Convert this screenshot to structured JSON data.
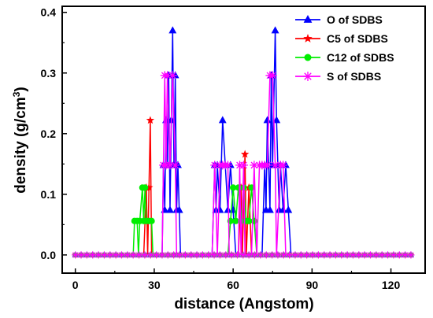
{
  "chart_data": {
    "type": "line",
    "xlabel": "distance (Angstom)",
    "ylabel_main": "density (g/cm",
    "ylabel_sup": "3",
    "ylabel_close": ")",
    "xlim": [
      -5,
      133
    ],
    "ylim": [
      -0.03,
      0.41
    ],
    "xticks": [
      0,
      30,
      60,
      90,
      120
    ],
    "yticks": [
      0.0,
      0.1,
      0.2,
      0.3,
      0.4
    ],
    "ytick_labels": [
      "0.0",
      "0.1",
      "0.2",
      "0.3",
      "0.4"
    ],
    "grid": false,
    "legend_position": "top-right",
    "series": [
      {
        "name": "O of SDBS",
        "color": "#0000ff",
        "marker": "triangle",
        "points": [
          [
            0,
            0
          ],
          [
            33,
            0
          ],
          [
            33.5,
            0.148
          ],
          [
            34,
            0.074
          ],
          [
            34.5,
            0.222
          ],
          [
            35,
            0.148
          ],
          [
            35.5,
            0.296
          ],
          [
            36,
            0.074
          ],
          [
            36.5,
            0.222
          ],
          [
            37,
            0.37
          ],
          [
            37.5,
            0.148
          ],
          [
            38,
            0.296
          ],
          [
            38.5,
            0.074
          ],
          [
            39,
            0.148
          ],
          [
            39.5,
            0.074
          ],
          [
            40,
            0
          ],
          [
            52,
            0
          ],
          [
            53,
            0.148
          ],
          [
            53.5,
            0.074
          ],
          [
            54,
            0.148
          ],
          [
            55,
            0.074
          ],
          [
            56,
            0.222
          ],
          [
            57,
            0.148
          ],
          [
            58,
            0.074
          ],
          [
            59,
            0.148
          ],
          [
            60,
            0.074
          ],
          [
            61,
            0
          ],
          [
            71,
            0
          ],
          [
            72,
            0.148
          ],
          [
            72.5,
            0.074
          ],
          [
            73,
            0.222
          ],
          [
            74,
            0.074
          ],
          [
            74.5,
            0.296
          ],
          [
            75,
            0.148
          ],
          [
            76,
            0.37
          ],
          [
            76.5,
            0.222
          ],
          [
            77,
            0.148
          ],
          [
            77.5,
            0.074
          ],
          [
            78,
            0.148
          ],
          [
            79,
            0.074
          ],
          [
            80,
            0.148
          ],
          [
            81,
            0.074
          ],
          [
            82,
            0
          ],
          [
            128,
            0
          ]
        ]
      },
      {
        "name": "C5 of SDBS",
        "color": "#ff0000",
        "marker": "star",
        "points": [
          [
            0,
            0
          ],
          [
            26,
            0
          ],
          [
            27,
            0.111
          ],
          [
            27.5,
            0
          ],
          [
            28,
            0.111
          ],
          [
            28.5,
            0.222
          ],
          [
            29,
            0
          ],
          [
            62,
            0
          ],
          [
            63,
            0.111
          ],
          [
            63.5,
            0
          ],
          [
            64.5,
            0.166
          ],
          [
            65,
            0
          ],
          [
            66,
            0.111
          ],
          [
            67,
            0
          ],
          [
            128,
            0
          ]
        ]
      },
      {
        "name": "C12 of SDBS",
        "color": "#00ee00",
        "marker": "circle",
        "points": [
          [
            0,
            0
          ],
          [
            22,
            0
          ],
          [
            22.5,
            0.056
          ],
          [
            23.5,
            0.056
          ],
          [
            24,
            0
          ],
          [
            24.5,
            0.056
          ],
          [
            25.5,
            0.111
          ],
          [
            26,
            0.056
          ],
          [
            26.5,
            0.111
          ],
          [
            27,
            0.056
          ],
          [
            28,
            0.056
          ],
          [
            29,
            0.056
          ],
          [
            29.5,
            0
          ],
          [
            58,
            0
          ],
          [
            59,
            0.056
          ],
          [
            60,
            0.111
          ],
          [
            61,
            0.056
          ],
          [
            62,
            0.111
          ],
          [
            63,
            0.056
          ],
          [
            64,
            0.111
          ],
          [
            65,
            0.056
          ],
          [
            66,
            0.056
          ],
          [
            67,
            0.111
          ],
          [
            68,
            0.056
          ],
          [
            69,
            0
          ],
          [
            128,
            0
          ]
        ]
      },
      {
        "name": "S of SDBS",
        "color": "#ff00ff",
        "marker": "asterisk",
        "points": [
          [
            0,
            0
          ],
          [
            33,
            0
          ],
          [
            33.5,
            0.148
          ],
          [
            34,
            0.296
          ],
          [
            34.5,
            0.148
          ],
          [
            35,
            0.296
          ],
          [
            36,
            0.148
          ],
          [
            37,
            0.296
          ],
          [
            38,
            0.148
          ],
          [
            38.5,
            0
          ],
          [
            52,
            0
          ],
          [
            53,
            0.148
          ],
          [
            54,
            0
          ],
          [
            55,
            0.148
          ],
          [
            56,
            0.148
          ],
          [
            57,
            0.148
          ],
          [
            58,
            0.148
          ],
          [
            58.5,
            0
          ],
          [
            62,
            0
          ],
          [
            62.5,
            0.148
          ],
          [
            63,
            0
          ],
          [
            64,
            0.148
          ],
          [
            64.5,
            0
          ],
          [
            67,
            0
          ],
          [
            68,
            0.148
          ],
          [
            69,
            0
          ],
          [
            70,
            0.148
          ],
          [
            71,
            0.148
          ],
          [
            72,
            0.148
          ],
          [
            73,
            0.148
          ],
          [
            74,
            0.296
          ],
          [
            75,
            0.296
          ],
          [
            76,
            0.148
          ],
          [
            76.5,
            0
          ],
          [
            78,
            0.148
          ],
          [
            79,
            0.148
          ],
          [
            80,
            0
          ],
          [
            128,
            0
          ]
        ]
      }
    ]
  }
}
